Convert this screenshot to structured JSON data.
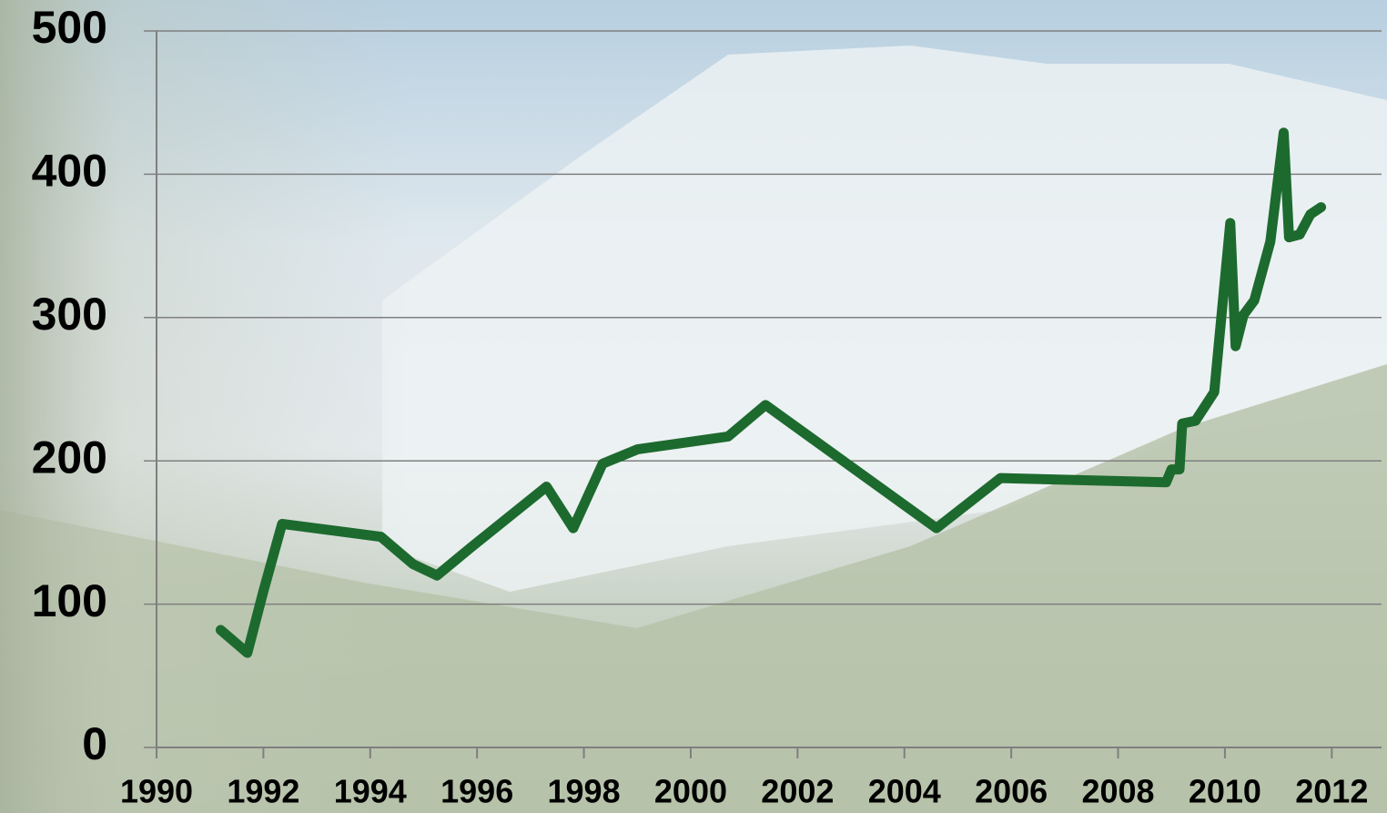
{
  "chart_data": {
    "type": "line",
    "x": [
      1991.2,
      1991.7,
      1992.0,
      1992.35,
      1994.2,
      1994.8,
      1995.25,
      1995.9,
      1997.3,
      1997.8,
      1998.35,
      1999.0,
      2000.7,
      2001.4,
      2004.6,
      2005.8,
      2008.9,
      2009.0,
      2009.15,
      2009.2,
      2009.45,
      2009.8,
      2010.1,
      2010.2,
      2010.35,
      2010.55,
      2010.85,
      2011.1,
      2011.2,
      2011.4,
      2011.6,
      2011.8
    ],
    "series": [
      {
        "color": "#1d6a2e",
        "values": [
          82,
          66,
          109,
          156,
          147,
          128,
          120,
          140,
          182,
          153,
          198,
          208,
          217,
          239,
          153,
          188,
          185,
          194,
          194,
          226,
          228,
          248,
          366,
          280,
          302,
          312,
          353,
          429,
          356,
          358,
          372,
          377
        ]
      }
    ],
    "xlim": [
      1990,
      2013
    ],
    "xticks": [
      1990,
      1992,
      1994,
      1996,
      1998,
      2000,
      2002,
      2004,
      2006,
      2008,
      2010,
      2012
    ],
    "ylim": [
      0,
      500
    ],
    "yticks": [
      0,
      100,
      200,
      300,
      400,
      500
    ],
    "grid": true
  }
}
